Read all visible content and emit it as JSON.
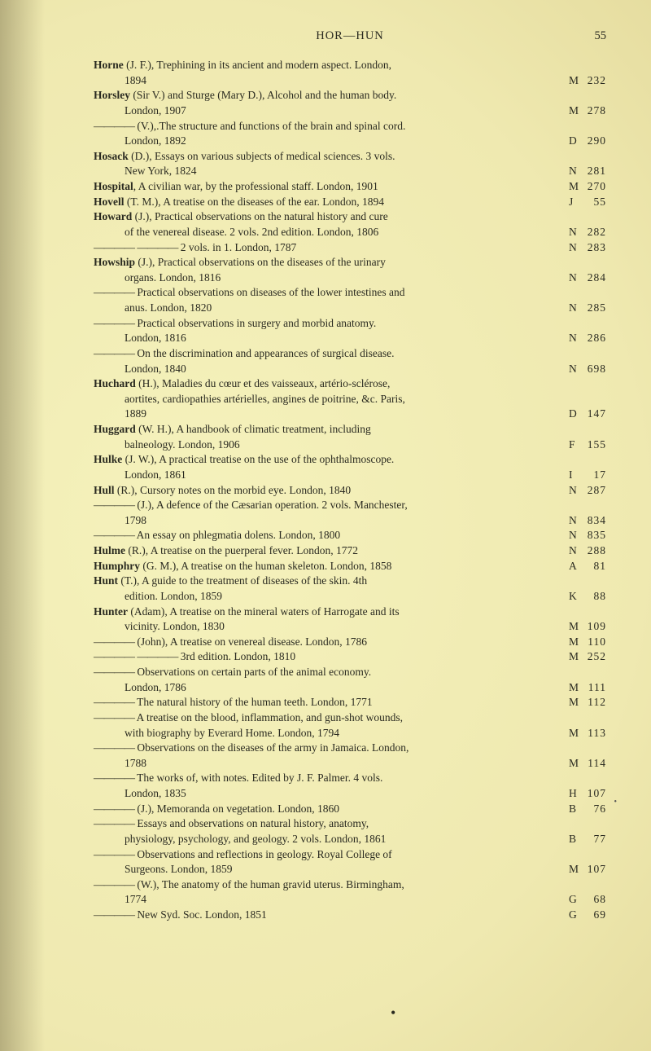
{
  "header": {
    "running": "HOR—HUN",
    "page": "55"
  },
  "style": {
    "page_bg": "#f3efb9",
    "text_color": "#2a2a20",
    "author_weight": "bold",
    "body_font_size_pt": 10,
    "header_font_size_pt": 11
  },
  "entries": [
    {
      "lines": [
        "<b>Horne</b> (J. F.), Trephining in its ancient and modern aspect. London,",
        "1894"
      ],
      "ref": [
        "M",
        "232"
      ]
    },
    {
      "lines": [
        "<b>Horsley</b> (Sir V.) and Sturge (Mary D.), Alcohol and the human body.",
        "London, 1907"
      ],
      "ref": [
        "M",
        "278"
      ]
    },
    {
      "lines": [
        "——— (V.),.The structure and functions of the brain and spinal cord.",
        "London, 1892"
      ],
      "ref": [
        "D",
        "290"
      ]
    },
    {
      "lines": [
        "<b>Hosack</b> (D.), Essays on various subjects of medical sciences. 3 vols.",
        "New York, 1824"
      ],
      "ref": [
        "N",
        "281"
      ]
    },
    {
      "lines": [
        "<b>Hospital</b>, A civilian war, by the professional staff. London, 1901"
      ],
      "ref": [
        "M",
        "270"
      ]
    },
    {
      "lines": [
        "<b>Hovell</b> (T. M.), A treatise on the diseases of the ear. London, 1894"
      ],
      "ref": [
        "J",
        "55"
      ]
    },
    {
      "lines": [
        "<b>Howard</b> (J.), Practical observations on the natural history and cure",
        "of the venereal disease. 2 vols. 2nd edition. London, 1806"
      ],
      "ref": [
        "N",
        "282"
      ]
    },
    {
      "lines": [
        "——— ——— 2 vols. in 1. London, 1787"
      ],
      "ref": [
        "N",
        "283"
      ]
    },
    {
      "lines": [
        "<b>Howship</b> (J.), Practical observations on the diseases of the urinary",
        "organs. London, 1816"
      ],
      "ref": [
        "N",
        "284"
      ]
    },
    {
      "lines": [
        "——— Practical observations on diseases of the lower intestines and",
        "anus. London, 1820"
      ],
      "ref": [
        "N",
        "285"
      ]
    },
    {
      "lines": [
        "——— Practical observations in surgery and morbid anatomy.",
        "London, 1816"
      ],
      "ref": [
        "N",
        "286"
      ]
    },
    {
      "lines": [
        "——— On the discrimination and appearances of surgical disease.",
        "London, 1840"
      ],
      "ref": [
        "N",
        "698"
      ]
    },
    {
      "lines": [
        "<b>Huchard</b> (H.), Maladies du cœur et des vaisseaux, artério-sclérose,",
        "aortites, cardiopathies artérielles, angines de poitrine, &c. Paris,",
        "1889"
      ],
      "ref": [
        "D",
        "147"
      ]
    },
    {
      "lines": [
        "<b>Huggard</b> (W. H.), A handbook of climatic treatment, including",
        "balneology. London, 1906"
      ],
      "ref": [
        "F",
        "155"
      ]
    },
    {
      "lines": [
        "<b>Hulke</b> (J. W.), A practical treatise on the use of the ophthalmoscope.",
        "London, 1861"
      ],
      "ref": [
        "I",
        "17"
      ]
    },
    {
      "lines": [
        "<b>Hull</b> (R.), Cursory notes on the morbid eye. London, 1840"
      ],
      "ref": [
        "N",
        "287"
      ]
    },
    {
      "lines": [
        "——— (J.), A defence of the Cæsarian operation. 2 vols. Manchester,",
        "1798"
      ],
      "ref": [
        "N",
        "834"
      ]
    },
    {
      "lines": [
        "——— An essay on phlegmatia dolens. London, 1800"
      ],
      "ref": [
        "N",
        "835"
      ]
    },
    {
      "lines": [
        "<b>Hulme</b> (R.), A treatise on the puerperal fever. London, 1772"
      ],
      "ref": [
        "N",
        "288"
      ]
    },
    {
      "lines": [
        "<b>Humphry</b> (G. M.), A treatise on the human skeleton. London, 1858"
      ],
      "ref": [
        "A",
        "81"
      ]
    },
    {
      "lines": [
        "<b>Hunt</b> (T.), A guide to the treatment of diseases of the skin. 4th",
        "edition. London, 1859"
      ],
      "ref": [
        "K",
        "88"
      ]
    },
    {
      "lines": [
        "<b>Hunter</b> (Adam), A treatise on the mineral waters of Harrogate and its",
        "vicinity. London, 1830"
      ],
      "ref": [
        "M",
        "109"
      ]
    },
    {
      "lines": [
        "——— (John), A treatise on venereal disease. London, 1786"
      ],
      "ref": [
        "M",
        "110"
      ]
    },
    {
      "lines": [
        "——— ——— 3rd edition. London, 1810"
      ],
      "ref": [
        "M",
        "252"
      ]
    },
    {
      "lines": [
        "——— Observations on certain parts of the animal economy.",
        "London, 1786"
      ],
      "ref": [
        "M",
        "111"
      ]
    },
    {
      "lines": [
        "——— The natural history of the human teeth. London, 1771"
      ],
      "ref": [
        "M",
        "112"
      ]
    },
    {
      "lines": [
        "——— A treatise on the blood, inflammation, and gun-shot wounds,",
        "with biography by Everard Home. London, 1794"
      ],
      "ref": [
        "M",
        "113"
      ]
    },
    {
      "lines": [
        "——— Observations on the diseases of the army in Jamaica. London,",
        "1788"
      ],
      "ref": [
        "M",
        "114"
      ]
    },
    {
      "lines": [
        "——— The works of, with notes. Edited by J. F. Palmer. 4 vols.",
        "London, 1835"
      ],
      "ref": [
        "H",
        "107"
      ]
    },
    {
      "lines": [
        "——— (J.), Memoranda on vegetation. London, 1860"
      ],
      "ref": [
        "B",
        "76"
      ]
    },
    {
      "lines": [
        "——— Essays and observations on natural history, anatomy,",
        "physiology, psychology, and geology. 2 vols. London, 1861"
      ],
      "ref": [
        "B",
        "77"
      ]
    },
    {
      "lines": [
        "——— Observations and reflections in geology. Royal College of",
        "Surgeons. London, 1859"
      ],
      "ref": [
        "M",
        "107"
      ]
    },
    {
      "lines": [
        "——— (W.), The anatomy of the human gravid uterus. Birmingham,",
        "1774"
      ],
      "ref": [
        "G",
        "68"
      ]
    },
    {
      "lines": [
        "——— New Syd. Soc. London, 1851"
      ],
      "ref": [
        "G",
        "69"
      ]
    }
  ]
}
